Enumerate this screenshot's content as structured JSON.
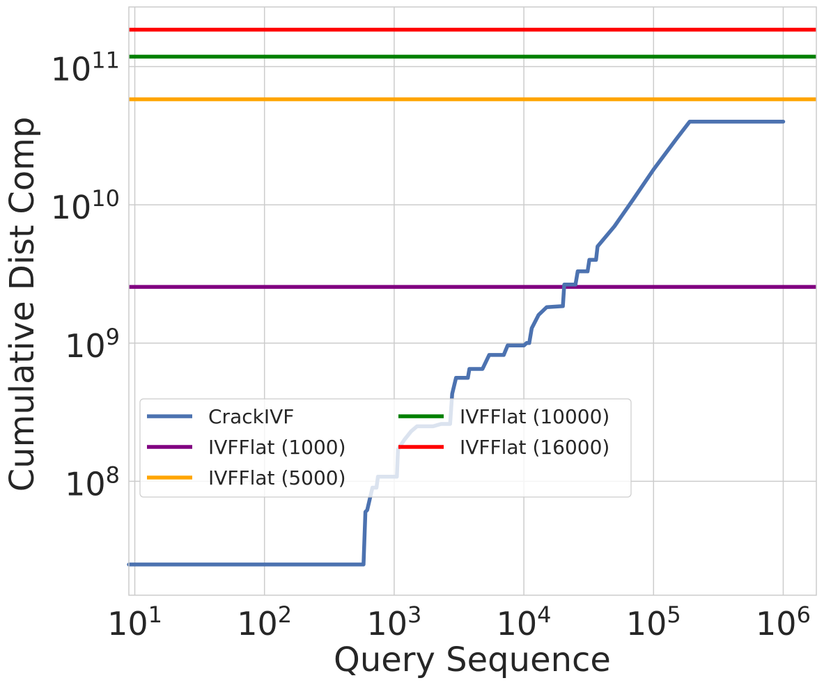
{
  "chart_data": {
    "type": "line",
    "title": "",
    "xlabel": "Query Sequence",
    "ylabel": "Cumulative Dist Comp",
    "xscale": "log",
    "yscale": "log",
    "xlim": [
      9,
      1800000
    ],
    "ylim": [
      15000000,
      270000000000
    ],
    "grid": true,
    "legend_position": "center-left",
    "legend_columns": 2,
    "x_ticks": [
      {
        "value": 10,
        "base": "10",
        "exp": "1"
      },
      {
        "value": 100,
        "base": "10",
        "exp": "2"
      },
      {
        "value": 1000,
        "base": "10",
        "exp": "3"
      },
      {
        "value": 10000,
        "base": "10",
        "exp": "4"
      },
      {
        "value": 100000,
        "base": "10",
        "exp": "5"
      },
      {
        "value": 1000000,
        "base": "10",
        "exp": "6"
      }
    ],
    "y_ticks": [
      {
        "value": 100000000,
        "base": "10",
        "exp": "8"
      },
      {
        "value": 1000000000,
        "base": "10",
        "exp": "9"
      },
      {
        "value": 10000000000,
        "base": "10",
        "exp": "10"
      },
      {
        "value": 100000000000,
        "base": "10",
        "exp": "11"
      }
    ],
    "series": [
      {
        "name": "CrackIVF",
        "color": "#4c72b0",
        "points": [
          [
            9,
            25000000
          ],
          [
            580,
            25000000
          ],
          [
            600,
            60000000
          ],
          [
            620,
            62000000
          ],
          [
            680,
            90000000
          ],
          [
            730,
            90000000
          ],
          [
            750,
            108000000
          ],
          [
            1050,
            108000000
          ],
          [
            1070,
            170000000
          ],
          [
            1200,
            200000000
          ],
          [
            1350,
            230000000
          ],
          [
            1500,
            250000000
          ],
          [
            2000,
            250000000
          ],
          [
            2300,
            260000000
          ],
          [
            2700,
            260000000
          ],
          [
            2800,
            430000000
          ],
          [
            3000,
            560000000
          ],
          [
            3700,
            560000000
          ],
          [
            3800,
            650000000
          ],
          [
            4800,
            650000000
          ],
          [
            5400,
            820000000
          ],
          [
            7000,
            820000000
          ],
          [
            7500,
            960000000
          ],
          [
            10000,
            960000000
          ],
          [
            10500,
            1000000000
          ],
          [
            11000,
            1000000000
          ],
          [
            11500,
            1280000000
          ],
          [
            13000,
            1600000000
          ],
          [
            15000,
            1820000000
          ],
          [
            20000,
            1850000000
          ],
          [
            20500,
            2650000000
          ],
          [
            25000,
            2650000000
          ],
          [
            26000,
            3300000000
          ],
          [
            31000,
            3300000000
          ],
          [
            32000,
            4000000000
          ],
          [
            36000,
            4000000000
          ],
          [
            37000,
            5000000000
          ],
          [
            50000,
            7000000000
          ],
          [
            70000,
            11000000000
          ],
          [
            100000,
            18000000000
          ],
          [
            150000,
            30000000000
          ],
          [
            190000,
            40000000000
          ],
          [
            1000000,
            40000000000
          ]
        ]
      },
      {
        "name": "IVFFlat (1000)",
        "color": "#800080",
        "constant": 2550000000
      },
      {
        "name": "IVFFlat (5000)",
        "color": "#ffa500",
        "constant": 58000000000
      },
      {
        "name": "IVFFlat (10000)",
        "color": "#008000",
        "constant": 118000000000
      },
      {
        "name": "IVFFlat (16000)",
        "color": "#ff0000",
        "constant": 185000000000
      }
    ]
  }
}
